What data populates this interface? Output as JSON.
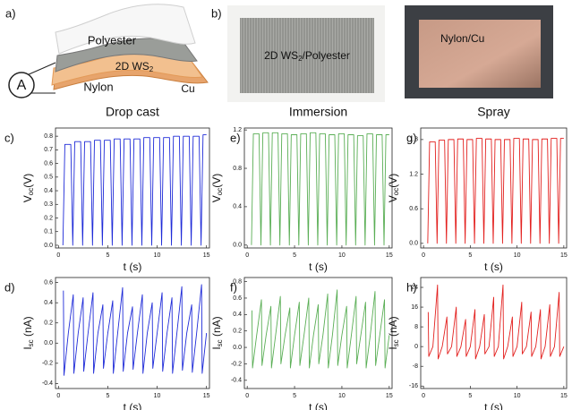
{
  "schematic": {
    "label": "a)",
    "layers": {
      "polyester": "Polyester",
      "ws2": [
        "2D WS",
        "2"
      ],
      "nylon": "Nylon",
      "cu": "Cu"
    },
    "electrode": "A"
  },
  "photos": {
    "label": "b)",
    "left": [
      "2D WS",
      "2",
      "/Polyester"
    ],
    "right": "Nylon/Cu"
  },
  "chart_data": [
    {
      "type": "line",
      "label": "c)",
      "title": "Drop cast",
      "y_label": [
        "V",
        "oc",
        "(V)"
      ],
      "x_label": "t (s)",
      "color": "#1f2bd8",
      "x": [
        0.45,
        0.65,
        1.25,
        1.45,
        1.65,
        2.25,
        2.45,
        2.65,
        3.25,
        3.45,
        3.65,
        4.25,
        4.45,
        4.65,
        5.25,
        5.45,
        5.65,
        6.25,
        6.45,
        6.65,
        7.25,
        7.45,
        7.65,
        8.25,
        8.45,
        8.65,
        9.25,
        9.45,
        9.65,
        10.25,
        10.45,
        10.65,
        11.25,
        11.45,
        11.65,
        12.25,
        12.45,
        12.65,
        13.25,
        13.45,
        13.65,
        14.25,
        14.45,
        14.65,
        15.0
      ],
      "values": [
        0,
        0.74,
        0.74,
        0,
        0.76,
        0.76,
        0,
        0.76,
        0.76,
        0,
        0.77,
        0.77,
        0,
        0.77,
        0.77,
        0,
        0.78,
        0.78,
        0,
        0.78,
        0.78,
        0,
        0.78,
        0.78,
        0,
        0.79,
        0.79,
        0,
        0.79,
        0.79,
        0,
        0.79,
        0.79,
        0,
        0.8,
        0.8,
        0,
        0.8,
        0.8,
        0,
        0.8,
        0.8,
        0,
        0.81,
        0.81
      ],
      "xlim": [
        -0.3,
        15.3
      ],
      "ylim": [
        -0.02,
        0.86
      ],
      "xticks": [
        0,
        5,
        10,
        15
      ],
      "yticks": [
        {
          "value": 0,
          "label": "0.0"
        },
        0.1,
        0.2,
        0.3,
        0.4,
        0.5,
        0.6,
        0.7,
        0.8
      ]
    },
    {
      "type": "line",
      "label": "d)",
      "y_label": [
        "I",
        "sc",
        " (nA)"
      ],
      "x_label": "t (s)",
      "color": "#1f2bd8",
      "x": [
        0.5,
        0.56,
        1,
        1.5,
        1.56,
        2,
        2.5,
        2.56,
        3,
        3.5,
        3.56,
        4,
        4.5,
        4.56,
        5,
        5.5,
        5.56,
        6,
        6.5,
        6.56,
        7,
        7.5,
        7.56,
        8,
        8.5,
        8.56,
        9,
        9.5,
        9.56,
        10,
        10.5,
        10.56,
        11,
        11.5,
        11.56,
        12,
        12.5,
        12.56,
        13,
        13.5,
        13.56,
        14,
        14.5,
        14.56,
        15
      ],
      "values": [
        0.52,
        -0.32,
        0.1,
        0.48,
        -0.3,
        0.1,
        0.45,
        -0.28,
        0.1,
        0.5,
        -0.3,
        0.1,
        0.38,
        -0.25,
        0.1,
        0.42,
        -0.3,
        0.1,
        0.55,
        -0.28,
        0.1,
        0.36,
        -0.26,
        0.1,
        0.48,
        -0.3,
        0.1,
        0.4,
        -0.25,
        0.1,
        0.5,
        -0.28,
        0.1,
        0.45,
        -0.3,
        0.1,
        0.56,
        -0.27,
        0.1,
        0.38,
        -0.29,
        0.1,
        0.58,
        -0.3,
        0.1
      ],
      "xlim": [
        -0.3,
        15.3
      ],
      "ylim": [
        -0.45,
        0.65
      ],
      "xticks": [
        0,
        5,
        10,
        15
      ],
      "yticks": [
        -0.4,
        -0.2,
        {
          "value": 0,
          "label": "0.0"
        },
        0.2,
        0.4,
        0.6
      ]
    },
    {
      "type": "line",
      "label": "e)",
      "title": "Immersion",
      "y_label": [
        "V",
        "oc",
        "(V)"
      ],
      "x_label": "t (s)",
      "color": "#5aae55",
      "x": [
        0.45,
        0.65,
        1.25,
        1.45,
        1.65,
        2.25,
        2.45,
        2.65,
        3.25,
        3.45,
        3.65,
        4.25,
        4.45,
        4.65,
        5.25,
        5.45,
        5.65,
        6.25,
        6.45,
        6.65,
        7.25,
        7.45,
        7.65,
        8.25,
        8.45,
        8.65,
        9.25,
        9.45,
        9.65,
        10.25,
        10.45,
        10.65,
        11.25,
        11.45,
        11.65,
        12.25,
        12.45,
        12.65,
        13.25,
        13.45,
        13.65,
        14.25,
        14.45,
        14.65,
        15.0
      ],
      "values": [
        0,
        1.16,
        1.16,
        0,
        1.17,
        1.17,
        0,
        1.17,
        1.17,
        0,
        1.16,
        1.16,
        0,
        1.15,
        1.15,
        0,
        1.16,
        1.16,
        0,
        1.17,
        1.17,
        0,
        1.16,
        1.16,
        0,
        1.15,
        1.15,
        0,
        1.16,
        1.16,
        0,
        1.15,
        1.15,
        0,
        1.14,
        1.14,
        0,
        1.16,
        1.16,
        0,
        1.15,
        1.15,
        0,
        1.15,
        1.15
      ],
      "xlim": [
        -0.3,
        15.3
      ],
      "ylim": [
        -0.03,
        1.22
      ],
      "xticks": [
        0,
        5,
        10,
        15
      ],
      "yticks": [
        {
          "value": 0,
          "label": "0.0"
        },
        0.4,
        0.8,
        1.2
      ]
    },
    {
      "type": "line",
      "label": "f)",
      "y_label": [
        "I",
        "sc",
        " (nA)"
      ],
      "x_label": "t (s)",
      "color": "#5aae55",
      "x": [
        0.5,
        0.56,
        1,
        1.5,
        1.56,
        2,
        2.5,
        2.56,
        3,
        3.5,
        3.56,
        4,
        4.5,
        4.56,
        5,
        5.5,
        5.56,
        6,
        6.5,
        6.56,
        7,
        7.5,
        7.56,
        8,
        8.5,
        8.56,
        9,
        9.5,
        9.56,
        10,
        10.5,
        10.56,
        11,
        11.5,
        11.56,
        12,
        12.5,
        12.56,
        13,
        13.5,
        13.56,
        14,
        14.5,
        14.56,
        15
      ],
      "values": [
        0.45,
        -0.25,
        0.15,
        0.58,
        -0.22,
        0.15,
        0.5,
        -0.25,
        0.15,
        0.62,
        -0.2,
        0.15,
        0.48,
        -0.25,
        0.15,
        0.55,
        -0.22,
        0.15,
        0.6,
        -0.25,
        0.15,
        0.52,
        -0.2,
        0.15,
        0.65,
        -0.25,
        0.15,
        0.7,
        -0.22,
        0.15,
        0.5,
        -0.25,
        0.15,
        0.62,
        -0.2,
        0.15,
        0.55,
        -0.25,
        0.15,
        0.68,
        -0.22,
        0.15,
        0.58,
        -0.25,
        0.15
      ],
      "xlim": [
        -0.3,
        15.3
      ],
      "ylim": [
        -0.5,
        0.85
      ],
      "xticks": [
        0,
        5,
        10,
        15
      ],
      "yticks": [
        -0.4,
        -0.2,
        {
          "value": 0,
          "label": "0.0"
        },
        0.2,
        0.4,
        0.6,
        0.8
      ]
    },
    {
      "type": "line",
      "label": "g)",
      "title": "Spray",
      "y_label": [
        "V",
        "oc",
        "(V)"
      ],
      "x_label": "t (s)",
      "color": "#e3211f",
      "x": [
        0.45,
        0.65,
        1.25,
        1.45,
        1.65,
        2.25,
        2.45,
        2.65,
        3.25,
        3.45,
        3.65,
        4.25,
        4.45,
        4.65,
        5.25,
        5.45,
        5.65,
        6.25,
        6.45,
        6.65,
        7.25,
        7.45,
        7.65,
        8.25,
        8.45,
        8.65,
        9.25,
        9.45,
        9.65,
        10.25,
        10.45,
        10.65,
        11.25,
        11.45,
        11.65,
        12.25,
        12.45,
        12.65,
        13.25,
        13.45,
        13.65,
        14.25,
        14.45,
        14.65,
        15.0
      ],
      "values": [
        0,
        1.76,
        1.76,
        0,
        1.79,
        1.79,
        0,
        1.8,
        1.8,
        0,
        1.81,
        1.81,
        0,
        1.8,
        1.8,
        0,
        1.82,
        1.82,
        0,
        1.81,
        1.81,
        0,
        1.8,
        1.8,
        0,
        1.8,
        1.8,
        0,
        1.82,
        1.82,
        0,
        1.81,
        1.81,
        0,
        1.8,
        1.8,
        0,
        1.81,
        1.81,
        0,
        1.82,
        1.82,
        0,
        1.82,
        1.82
      ],
      "xlim": [
        -0.3,
        15.3
      ],
      "ylim": [
        -0.08,
        2.0
      ],
      "xticks": [
        0,
        5,
        10,
        15
      ],
      "yticks": [
        {
          "value": 0,
          "label": "0.0"
        },
        0.6,
        1.2,
        1.8
      ]
    },
    {
      "type": "line",
      "label": "h)",
      "y_label": [
        "I",
        "sc",
        " (nA)"
      ],
      "x_label": "t (s)",
      "color": "#e3211f",
      "x": [
        0.5,
        0.56,
        1,
        1.5,
        1.56,
        2,
        2.5,
        2.56,
        3,
        3.5,
        3.56,
        4,
        4.5,
        4.56,
        5,
        5.5,
        5.56,
        6,
        6.5,
        6.56,
        7,
        7.5,
        7.56,
        8,
        8.5,
        8.56,
        9,
        9.5,
        9.56,
        10,
        10.5,
        10.56,
        11,
        11.5,
        11.56,
        12,
        12.5,
        12.56,
        13,
        13.5,
        13.56,
        14,
        14.5,
        14.56,
        15
      ],
      "values": [
        14,
        -4,
        0,
        25,
        -5,
        0,
        12,
        -3,
        0,
        16,
        -4,
        0,
        11,
        -4,
        0,
        15,
        -5,
        0,
        13,
        -3,
        0,
        20,
        -4,
        0,
        25,
        -5,
        0,
        12,
        -4,
        0,
        18,
        -3,
        0,
        14,
        -4,
        0,
        15,
        -5,
        0,
        17,
        -4,
        0,
        22,
        -4,
        0
      ],
      "xlim": [
        -0.3,
        15.3
      ],
      "ylim": [
        -17,
        28
      ],
      "xticks": [
        0,
        5,
        10,
        15
      ],
      "yticks": [
        -16,
        -8,
        0,
        8,
        16,
        24
      ]
    }
  ]
}
